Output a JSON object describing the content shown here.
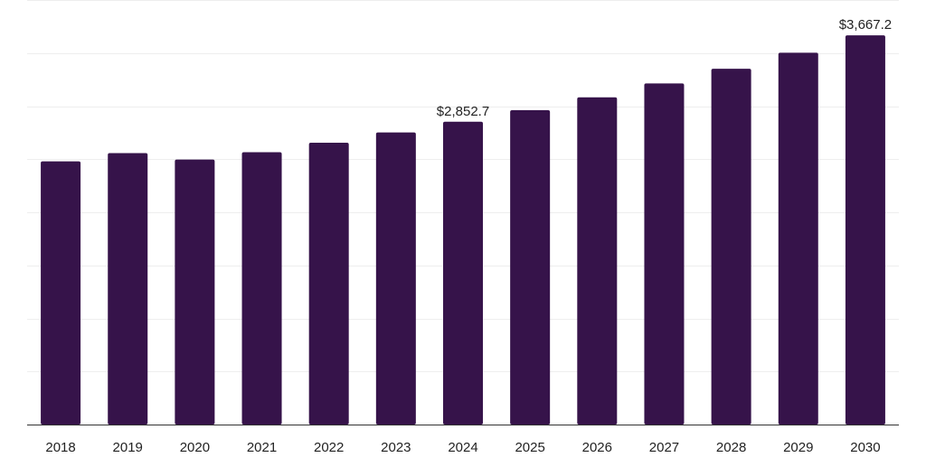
{
  "chart_data": {
    "type": "bar",
    "title": "",
    "xlabel": "",
    "ylabel": "",
    "categories": [
      "2018",
      "2019",
      "2020",
      "2021",
      "2022",
      "2023",
      "2024",
      "2025",
      "2026",
      "2027",
      "2028",
      "2029",
      "2030"
    ],
    "values": [
      2480.0,
      2557.4,
      2497.0,
      2566.0,
      2655.0,
      2752.0,
      2852.7,
      2962.0,
      3083.0,
      3214.0,
      3352.0,
      3503.0,
      3667.2
    ],
    "data_labels": [
      {
        "category": "2024",
        "text": "$2,852.7"
      },
      {
        "category": "2030",
        "text": "$3,667.2"
      }
    ],
    "ylim": [
      0,
      4000
    ],
    "y_tick_labels_shown": false,
    "grid": true,
    "legend": "none",
    "colors": {
      "bar": "#36134a",
      "grid": "#eeeeee",
      "axis": "#333333",
      "text": "#222222"
    }
  }
}
